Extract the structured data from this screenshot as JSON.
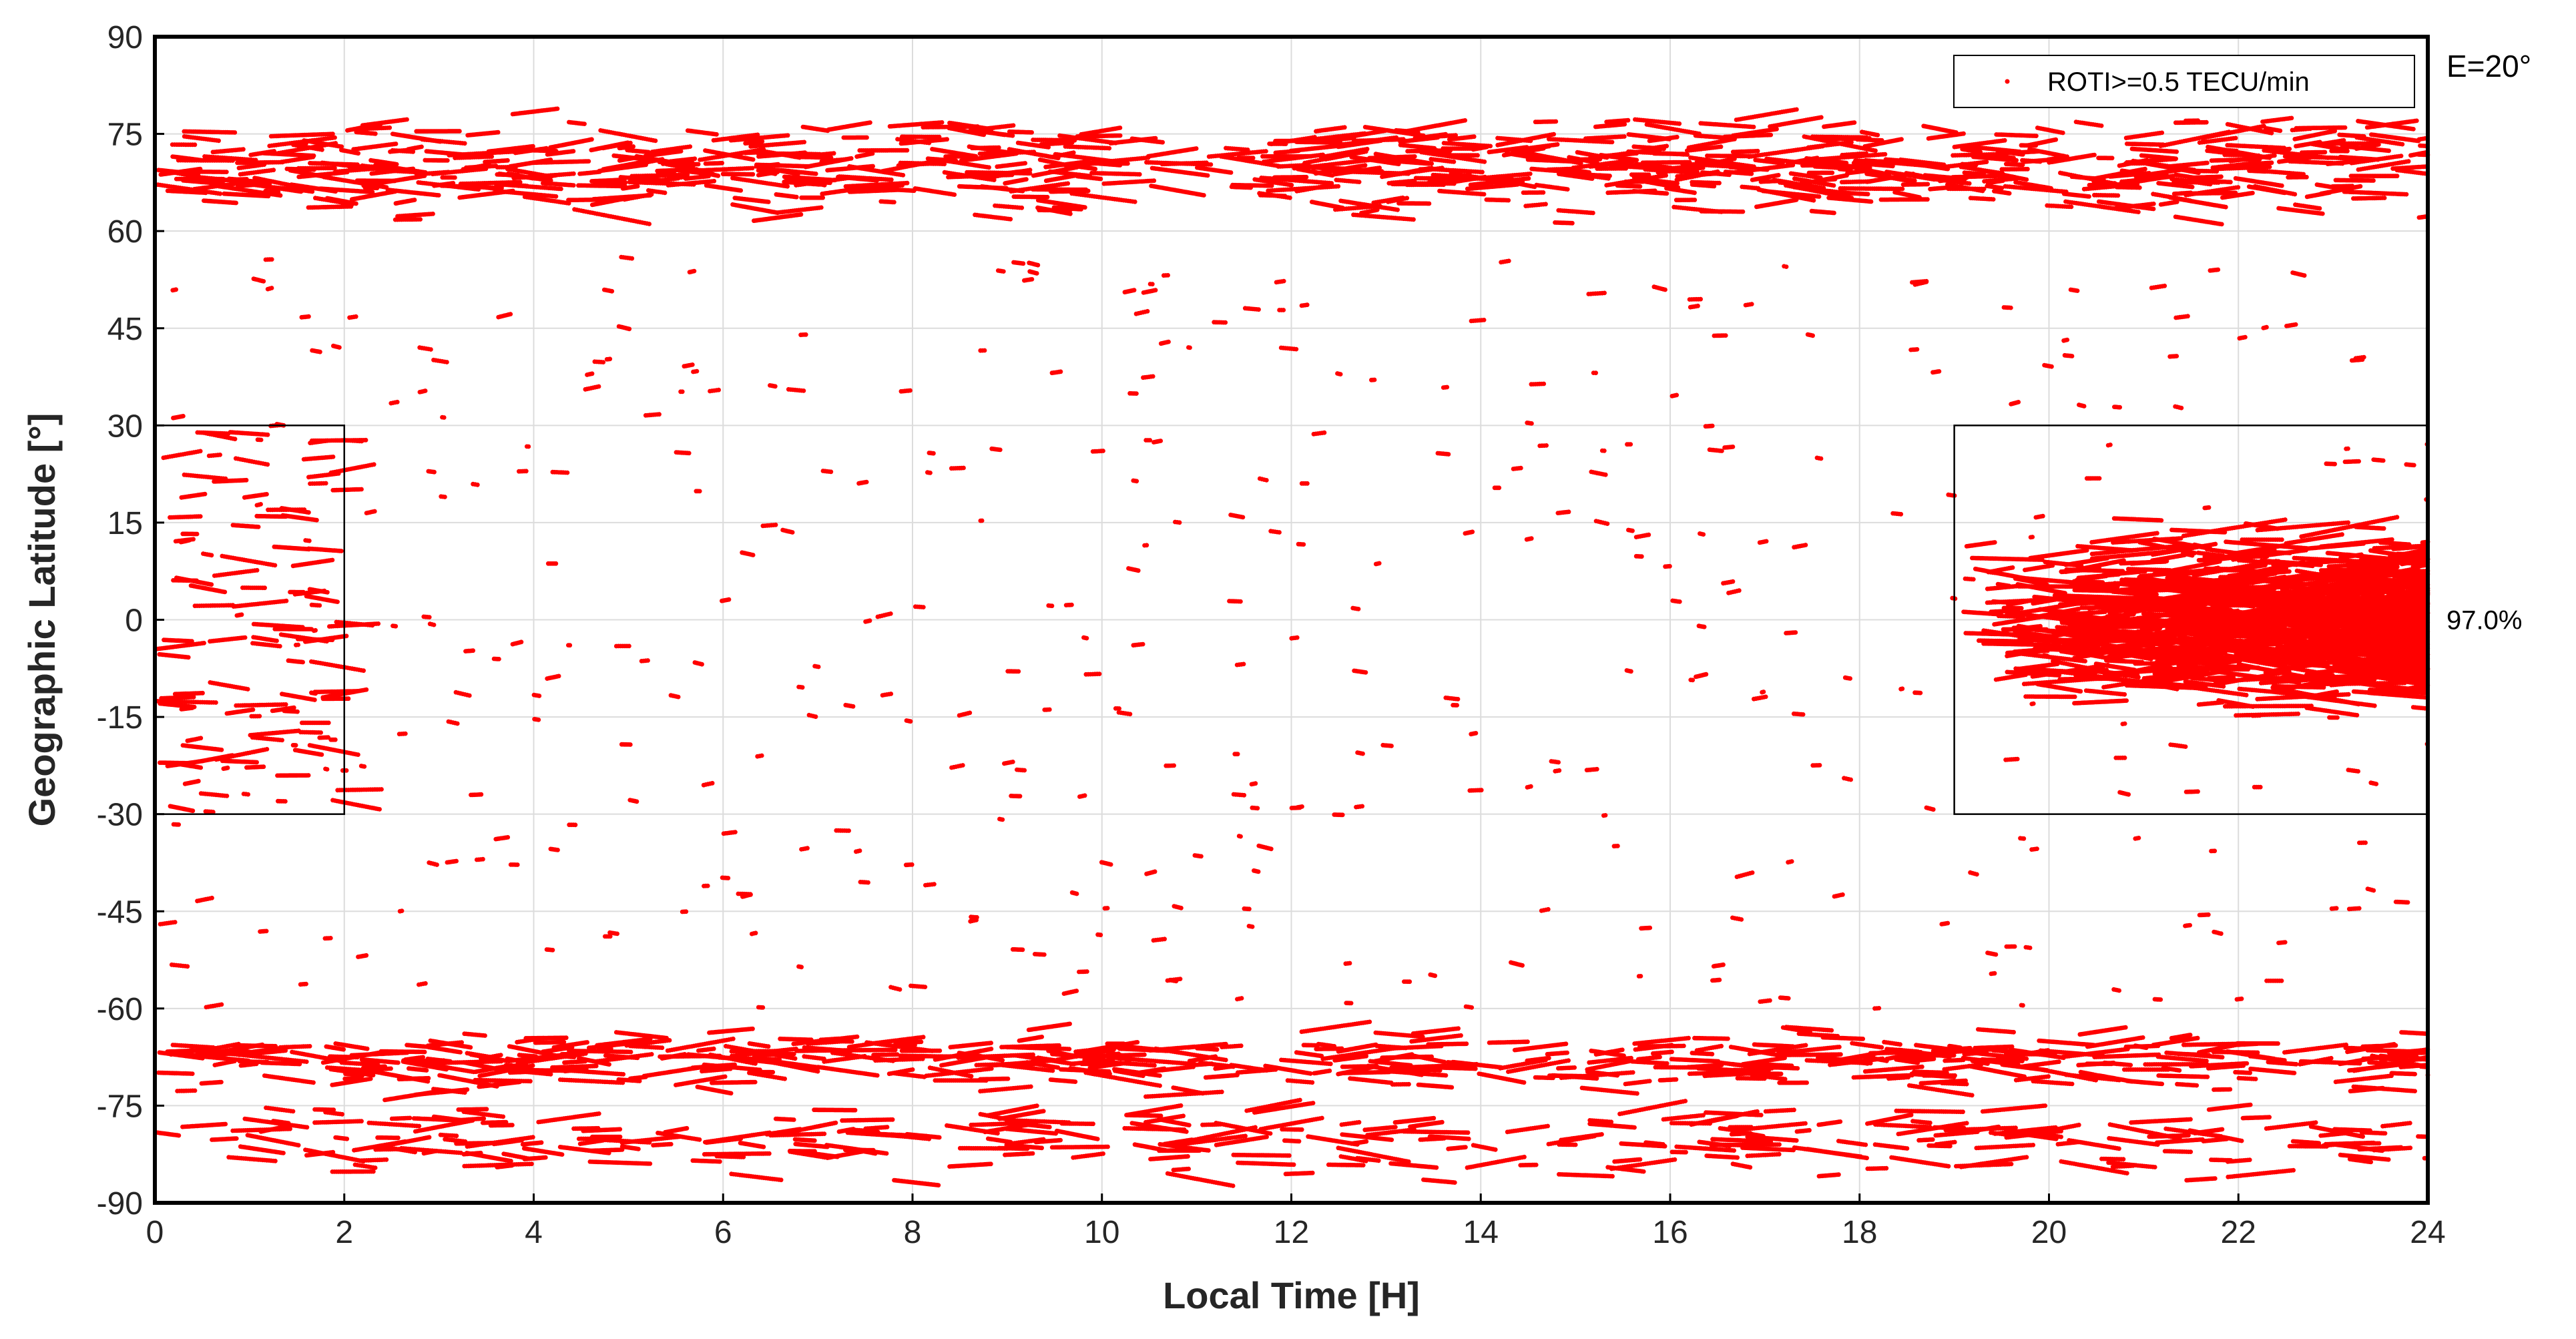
{
  "chart_data": {
    "type": "scatter",
    "title": "",
    "xlabel": "Local Time [H]",
    "ylabel": "Geographic Latitude [°]",
    "xlim": [
      0,
      24
    ],
    "ylim": [
      -90,
      90
    ],
    "x_ticks": [
      "0",
      "2",
      "4",
      "6",
      "8",
      "10",
      "12",
      "14",
      "16",
      "18",
      "20",
      "22",
      "24"
    ],
    "y_ticks": [
      "90",
      "75",
      "60",
      "45",
      "30",
      "15",
      "0",
      "-15",
      "-30",
      "-45",
      "-60",
      "-75",
      "-90"
    ],
    "grid": true,
    "legend": {
      "position": "top-right",
      "entries": [
        "ROTI>=0.5 TECU/min"
      ]
    },
    "series": [
      {
        "name": "ROTI>=0.5 TECU/min",
        "color": "#ff0000",
        "marker": "dot",
        "density_regions": [
          {
            "label": "north-auroral-band",
            "x": [
              0,
              24
            ],
            "y": [
              56,
              86
            ],
            "density": "high"
          },
          {
            "label": "south-auroral-band",
            "x": [
              0,
              24
            ],
            "y": [
              -90,
              -60
            ],
            "density": "high"
          },
          {
            "label": "post-sunset-equatorial",
            "x": [
              19,
              24
            ],
            "y": [
              -37,
              30
            ],
            "density": "very-high"
          },
          {
            "label": "post-midnight-equatorial",
            "x": [
              0,
              2
            ],
            "y": [
              -30,
              30
            ],
            "density": "medium"
          },
          {
            "label": "scattered-midlatitude",
            "x": [
              0,
              24
            ],
            "y": [
              -60,
              56
            ],
            "density": "sparse"
          }
        ]
      }
    ],
    "annotations": [
      {
        "text": "E=20°",
        "position": "top-right-outside"
      },
      {
        "text": "97.0%",
        "position": "right-outside-at-equator"
      }
    ],
    "boxes": [
      {
        "x": [
          0,
          2
        ],
        "y": [
          -30,
          30
        ]
      },
      {
        "x": [
          19,
          24
        ],
        "y": [
          -30,
          30
        ]
      }
    ]
  }
}
